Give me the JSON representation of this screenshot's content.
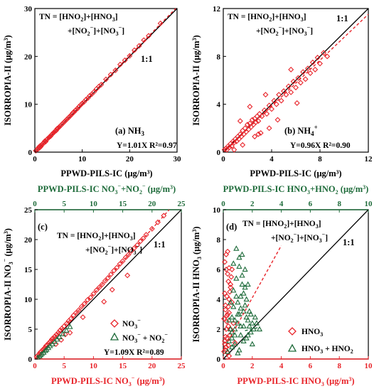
{
  "colors": {
    "red": "#e8242a",
    "green": "#1e6b3a",
    "black": "#000000"
  },
  "chart_data": [
    {
      "id": "a",
      "type": "scatter",
      "panel_label": "(a) NH",
      "panel_label_sub": "3",
      "tn_line1": "TN = [HNO",
      "tn_line2": "+[NO",
      "ylabel": "ISORROPIA-II",
      "ylabel_unit": "(μg/m³)",
      "xlabel": "PPWD-PILS-IC (μg/m³)",
      "xlim": [
        0,
        30
      ],
      "ylim": [
        0,
        30
      ],
      "xticks": [
        0,
        10,
        20,
        30
      ],
      "yticks": [
        0,
        10,
        20,
        30
      ],
      "one_to_one_label": "1:1",
      "fit_text": "Y=1.01X  R²=0.97",
      "fit_slope": 1.01,
      "series": [
        {
          "marker": "diamond",
          "color": "red",
          "x": [
            0.2,
            0.4,
            0.6,
            0.8,
            1.0,
            1.1,
            1.3,
            1.5,
            1.7,
            1.9,
            2.1,
            2.3,
            2.5,
            2.7,
            2.9,
            3.1,
            3.3,
            3.5,
            3.7,
            3.9,
            4.1,
            4.3,
            4.5,
            4.7,
            4.9,
            5.1,
            5.3,
            5.5,
            5.8,
            6.0,
            6.2,
            6.5,
            6.8,
            7.0,
            7.2,
            7.5,
            7.8,
            8.0,
            8.3,
            8.6,
            9.0,
            9.3,
            9.7,
            10.0,
            10.4,
            10.8,
            11.2,
            11.6,
            12.0,
            12.5,
            13.0,
            13.5,
            14.0,
            15.0,
            16.0,
            17.0,
            18.0,
            19.0,
            20.0,
            21.0,
            22.0,
            23.0,
            24.0,
            26.5
          ],
          "y": [
            0.3,
            0.5,
            0.6,
            1.0,
            0.9,
            1.3,
            1.2,
            1.6,
            1.8,
            1.9,
            2.3,
            2.2,
            2.6,
            2.8,
            3.0,
            3.2,
            3.3,
            3.6,
            3.8,
            4.0,
            4.2,
            4.4,
            4.5,
            4.9,
            5.0,
            5.2,
            5.4,
            5.6,
            5.9,
            6.1,
            6.3,
            6.6,
            6.9,
            7.1,
            7.3,
            7.6,
            7.9,
            8.2,
            8.4,
            8.8,
            9.1,
            9.5,
            9.9,
            10.2,
            10.5,
            11.0,
            11.3,
            11.8,
            12.1,
            12.6,
            13.2,
            13.7,
            14.1,
            15.2,
            16.2,
            17.1,
            18.3,
            19.2,
            20.1,
            21.3,
            22.2,
            23.4,
            24.3,
            26.9
          ]
        }
      ]
    },
    {
      "id": "b",
      "type": "scatter",
      "panel_label": "(b) NH",
      "panel_label_sub": "4",
      "panel_label_sup": "+",
      "tn_line1": "TN = [HNO",
      "tn_line2": "+[NO",
      "ylabel": "ISORROPIA-II",
      "ylabel_unit": "(μg/m³)",
      "xlabel": "PPWD-PILS-IC (μg/m³)",
      "xlim": [
        0,
        12
      ],
      "ylim": [
        0,
        12
      ],
      "xticks": [
        0,
        4,
        8,
        12
      ],
      "yticks": [
        0,
        4,
        8,
        12
      ],
      "one_to_one_label": "1:1",
      "fit_text": "Y=0.96X  R²=0.90",
      "fit_slope": 0.96,
      "series": [
        {
          "marker": "diamond",
          "color": "red",
          "x": [
            0.1,
            0.2,
            0.3,
            0.4,
            0.5,
            0.6,
            0.7,
            0.8,
            0.9,
            1.0,
            1.1,
            1.2,
            1.3,
            1.4,
            1.5,
            1.6,
            1.7,
            1.8,
            1.9,
            2.0,
            2.1,
            2.2,
            2.3,
            2.4,
            2.5,
            2.6,
            2.7,
            2.8,
            2.9,
            3.0,
            3.2,
            3.4,
            3.6,
            3.8,
            4.0,
            4.2,
            4.4,
            4.6,
            4.8,
            5.0,
            5.2,
            5.4,
            5.6,
            5.8,
            6.0,
            6.2,
            6.4,
            6.6,
            6.8,
            7.0,
            7.2,
            7.4,
            7.6,
            7.8,
            8.0,
            8.3,
            8.6,
            1.4,
            2.2,
            2.6,
            3.5,
            3.1,
            4.5,
            5.6,
            6.1,
            0.9,
            1.6,
            2.9,
            3.8
          ],
          "y": [
            0.2,
            0.3,
            0.2,
            0.5,
            0.4,
            0.7,
            0.5,
            0.9,
            0.8,
            1.1,
            0.9,
            1.3,
            1.1,
            1.5,
            1.3,
            1.8,
            1.5,
            2.0,
            1.7,
            2.3,
            1.9,
            2.4,
            2.1,
            2.7,
            2.3,
            2.8,
            2.5,
            3.0,
            2.6,
            3.2,
            3.0,
            3.5,
            3.2,
            3.9,
            3.6,
            4.3,
            4.0,
            4.8,
            4.3,
            5.1,
            4.8,
            5.5,
            5.0,
            5.9,
            5.4,
            6.2,
            5.8,
            6.7,
            6.1,
            7.0,
            6.6,
            7.5,
            6.9,
            7.9,
            7.4,
            8.3,
            8.0,
            2.6,
            3.8,
            1.3,
            4.8,
            1.6,
            2.7,
            6.9,
            4.1,
            0.2,
            0.6,
            1.5,
            2.0
          ]
        }
      ]
    },
    {
      "id": "c",
      "type": "scatter",
      "panel_label": "(c)",
      "tn_line1": "TN = [HNO",
      "tn_line2": "+[NO",
      "ylabel": "ISORROPIA-II NO",
      "ylabel_unit": "(μg/m³)",
      "xlabel": "PPWD-PILS-IC NO",
      "xlabel_unit": "(μg/m³)",
      "top_xlabel": "PPWD-PILS-IC NO",
      "top_xlabel_unit": "(μg/m³)",
      "xlim": [
        0,
        25
      ],
      "ylim": [
        0,
        25
      ],
      "xticks": [
        0,
        5,
        10,
        15,
        20,
        25
      ],
      "yticks": [
        0,
        5,
        10,
        15,
        20,
        25
      ],
      "one_to_one_label": "1:1",
      "fit_text": "Y=1.09X  R²=0.89",
      "fit_slope": 1.09,
      "legend": [
        {
          "label": "NO",
          "marker": "diamond",
          "color": "red"
        },
        {
          "label": "NO",
          "marker": "triangle",
          "color": "green"
        }
      ],
      "series": [
        {
          "name": "NO₃⁻",
          "marker": "diamond",
          "color": "red",
          "x": [
            0.3,
            0.5,
            0.7,
            0.9,
            1.1,
            1.3,
            1.5,
            1.7,
            1.9,
            2.1,
            2.3,
            2.5,
            2.7,
            2.9,
            3.1,
            3.4,
            3.7,
            4.0,
            4.3,
            4.6,
            5.0,
            5.4,
            5.8,
            6.2,
            6.6,
            7.0,
            7.5,
            8.0,
            8.5,
            9.0,
            9.5,
            10.0,
            10.5,
            11.0,
            11.5,
            12.0,
            12.5,
            13.0,
            13.5,
            14.0,
            14.5,
            15.0,
            15.5,
            16.0,
            16.5,
            17.0,
            17.5,
            18.0,
            18.5,
            19.0,
            20.0,
            21.0,
            22.0,
            4.5,
            6.0,
            8.2,
            11.8,
            13.2,
            15.8,
            3.6,
            5.2
          ],
          "y": [
            0.4,
            0.6,
            0.8,
            1.1,
            1.3,
            1.5,
            1.6,
            1.9,
            2.2,
            2.3,
            2.6,
            2.8,
            3.0,
            3.3,
            3.5,
            3.8,
            4.1,
            4.4,
            4.8,
            5.1,
            5.5,
            5.9,
            6.4,
            6.8,
            7.3,
            7.7,
            8.2,
            8.8,
            9.3,
            9.9,
            10.3,
            10.9,
            11.5,
            12.0,
            12.5,
            13.1,
            13.6,
            14.2,
            14.8,
            15.3,
            15.9,
            16.4,
            17.0,
            17.5,
            18.1,
            18.6,
            19.1,
            19.7,
            20.2,
            20.8,
            21.8,
            22.9,
            24.0,
            3.2,
            4.4,
            7.0,
            9.6,
            11.6,
            14.0,
            2.5,
            4.1
          ]
        },
        {
          "name": "NO₃⁻ + NO₂⁻",
          "marker": "triangle",
          "color": "green",
          "x": [
            0.5,
            0.8,
            1.0,
            1.2,
            1.5,
            1.8,
            2.0,
            2.3,
            2.6,
            3.0,
            3.4,
            3.8,
            4.2,
            4.8,
            5.4,
            6.0
          ],
          "y": [
            0.3,
            0.5,
            0.7,
            0.9,
            1.1,
            1.4,
            1.6,
            1.9,
            2.2,
            2.5,
            2.9,
            3.3,
            3.7,
            4.2,
            4.8,
            5.4
          ]
        }
      ]
    },
    {
      "id": "d",
      "type": "scatter",
      "panel_label": "(d)",
      "tn_line1": "TN = [HNO",
      "tn_line2": "+[NO",
      "ylabel": "ISORROPIA-II HNO",
      "ylabel_unit": "(μg/m³)",
      "xlabel": "PPWD-PILS-IC HNO",
      "xlabel_unit": "(μg/m³)",
      "top_xlabel": "PPWD-PILS-IC HNO",
      "top_xlabel_unit": "(μg/m³)",
      "xlim": [
        0,
        10
      ],
      "ylim": [
        0,
        10
      ],
      "xticks": [
        0,
        2,
        4,
        6,
        8,
        10
      ],
      "yticks": [
        0,
        2,
        4,
        6,
        8,
        10
      ],
      "one_to_one_label": "1:1",
      "legend": [
        {
          "label": "HNO",
          "marker": "diamond",
          "color": "red"
        },
        {
          "label": "HNO",
          "marker": "triangle",
          "color": "green"
        }
      ],
      "series": [
        {
          "name": "HNO₃",
          "marker": "diamond",
          "color": "red",
          "x": [
            0.05,
            0.1,
            0.15,
            0.2,
            0.25,
            0.3,
            0.35,
            0.4,
            0.45,
            0.5,
            0.55,
            0.6,
            0.1,
            0.2,
            0.3,
            0.4,
            0.5,
            0.15,
            0.25,
            0.35,
            0.45,
            0.1,
            0.2,
            0.3,
            0.4,
            0.05,
            0.15,
            0.25,
            0.35,
            0.6,
            0.7,
            0.8,
            0.2,
            0.3,
            0.1,
            0.4,
            0.5,
            0.25,
            0.15,
            0.35
          ],
          "y": [
            0.5,
            1.0,
            1.5,
            2.0,
            2.5,
            3.0,
            3.5,
            4.0,
            4.5,
            5.0,
            5.5,
            6.0,
            6.5,
            7.0,
            7.2,
            6.1,
            4.8,
            3.6,
            2.9,
            2.2,
            1.6,
            1.2,
            0.8,
            0.4,
            0.2,
            2.7,
            3.3,
            4.2,
            5.2,
            3.8,
            2.4,
            1.1,
            6.0,
            5.7,
            4.4,
            3.1,
            2.0,
            1.4,
            0.6,
            0.9
          ]
        },
        {
          "name": "HNO₃ + HNO₂",
          "marker": "triangle",
          "color": "green",
          "x": [
            0.3,
            0.4,
            0.5,
            0.6,
            0.7,
            0.8,
            0.9,
            1.0,
            1.1,
            1.2,
            1.3,
            1.4,
            1.5,
            1.6,
            1.7,
            1.8,
            1.9,
            2.0,
            2.1,
            2.2,
            0.5,
            0.7,
            0.9,
            1.1,
            1.3,
            1.5,
            1.7,
            0.6,
            0.8,
            1.0,
            1.2,
            1.4,
            1.6,
            1.8,
            2.0,
            0.4,
            0.6,
            0.8,
            1.0,
            1.2,
            1.4,
            1.6,
            2.3,
            2.5,
            0.9,
            1.1,
            1.3,
            0.7,
            1.5,
            1.9,
            1.0,
            1.2,
            0.8,
            1.4,
            1.7,
            0.6,
            1.1
          ],
          "y": [
            0.5,
            1.2,
            2.0,
            2.8,
            3.5,
            1.0,
            4.2,
            2.4,
            3.0,
            1.6,
            5.0,
            2.2,
            3.6,
            1.4,
            2.6,
            3.2,
            1.8,
            2.4,
            2.0,
            2.8,
            3.8,
            4.6,
            5.4,
            6.2,
            7.0,
            6.0,
            5.0,
            0.8,
            1.6,
            0.4,
            3.4,
            4.4,
            4.0,
            2.2,
            1.0,
            2.6,
            1.8,
            2.0,
            3.0,
            2.2,
            1.2,
            2.8,
            2.4,
            2.0,
            7.4,
            6.8,
            5.6,
            6.4,
            4.8,
            3.0,
            3.8,
            4.2,
            2.6,
            3.2,
            1.6,
            1.4,
            0.6
          ]
        }
      ]
    }
  ]
}
